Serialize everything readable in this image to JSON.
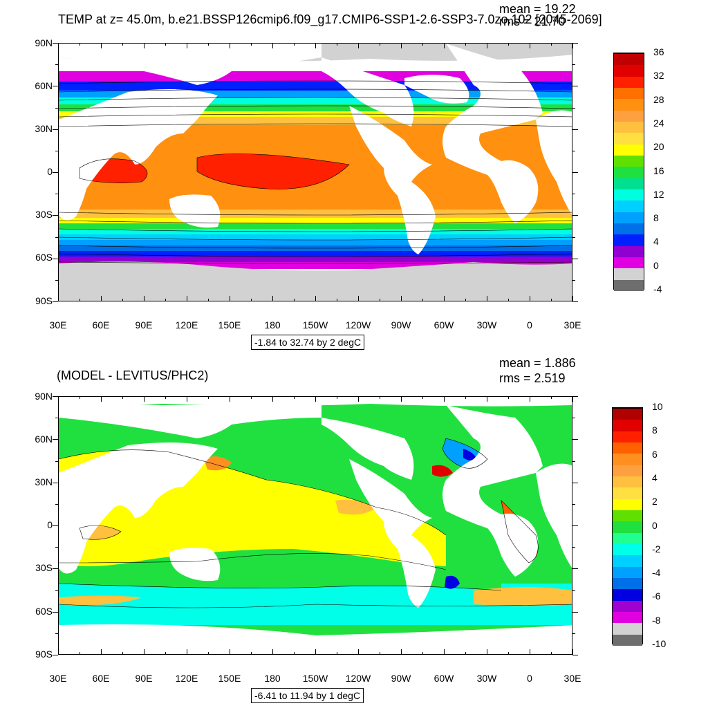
{
  "panel1": {
    "title": "TEMP at z=  45.0m, b.e21.BSSP126cmip6.f09_g17.CMIP6-SSP1-2.6-SSP3-7.0zo.102 [2045-2069]",
    "mean": "mean = 19.22",
    "rms": "rms = 21.70",
    "info": "-1.84 to 32.74 by 2 degC",
    "colorbar_labels": [
      "36",
      "32",
      "28",
      "24",
      "20",
      "16",
      "12",
      "8",
      "4",
      "0",
      "-4"
    ]
  },
  "panel2": {
    "title": "(MODEL - LEVITUS/PHC2)",
    "mean": "mean = 1.886",
    "rms": "rms = 2.519",
    "info": "-6.41 to 11.94 by 1 degC",
    "colorbar_labels": [
      "10",
      "8",
      "6",
      "4",
      "2",
      "0",
      "-2",
      "-4",
      "-6",
      "-8",
      "-10"
    ]
  },
  "lat_labels": [
    "90N",
    "60N",
    "30N",
    "0",
    "30S",
    "60S",
    "90S"
  ],
  "lon_labels": [
    "30E",
    "60E",
    "90E",
    "120E",
    "150E",
    "180",
    "150W",
    "120W",
    "90W",
    "60W",
    "30W",
    "0",
    "30E"
  ],
  "colors": {
    "temp_scale": [
      "#6e6e6e",
      "#d2d2d2",
      "#e000e0",
      "#9000d0",
      "#0020ff",
      "#0070e8",
      "#00a0ff",
      "#00d0ff",
      "#00ffe0",
      "#00e090",
      "#20e040",
      "#60e000",
      "#ffff00",
      "#ffe040",
      "#ffc040",
      "#ffa040",
      "#ff9010",
      "#ff7000",
      "#ff2000",
      "#e00000",
      "#c00000"
    ],
    "diff_scale": [
      "#6e6e6e",
      "#d2d2d2",
      "#e000e0",
      "#a000d0",
      "#0000e0",
      "#0070e8",
      "#00a0ff",
      "#00d0ff",
      "#00ffe8",
      "#20ff90",
      "#20e040",
      "#60e000",
      "#ffff00",
      "#ffe040",
      "#ffc040",
      "#ffa040",
      "#ff9020",
      "#ff6000",
      "#ff2000",
      "#e00000",
      "#b00000"
    ],
    "land": "#ffffff",
    "ice": "#d2d2d2"
  }
}
